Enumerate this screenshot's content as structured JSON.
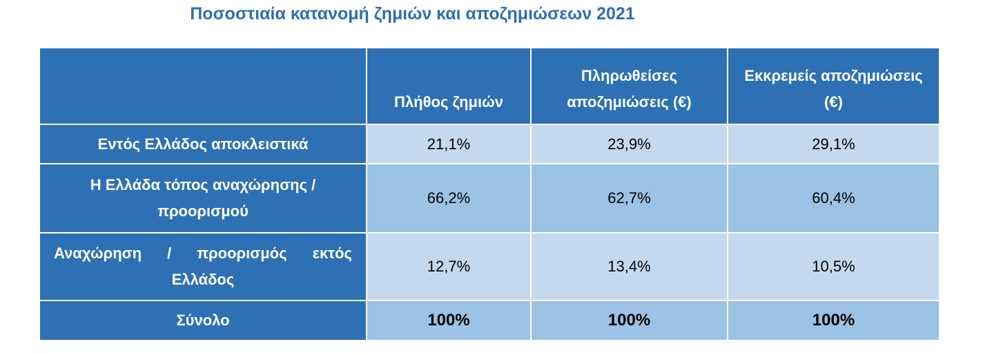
{
  "title": "Ποσοστιαία κατανομή ζημιών και αποζημιώσεων 2021",
  "table": {
    "header": [
      "Πλήθος ζημιών",
      "Πληρωθείσες αποζημιώσεις (€)",
      "Εκκρεμείς αποζημιώσεις (€)"
    ],
    "rows": [
      {
        "label": "Εντός Ελλάδος αποκλειστικά",
        "cells": [
          "21,1%",
          "23,9%",
          "29,1%"
        ]
      },
      {
        "label": "Η Ελλάδα τόπος αναχώρησης / προορισμού",
        "cells": [
          "66,2%",
          "62,7%",
          "60,4%"
        ]
      },
      {
        "label": "Αναχώρηση / προορισμός εκτός Ελλάδος",
        "cells": [
          "12,7%",
          "13,4%",
          "10,5%"
        ]
      },
      {
        "label": "Σύνολο",
        "cells": [
          "100%",
          "100%",
          "100%"
        ]
      }
    ]
  }
}
